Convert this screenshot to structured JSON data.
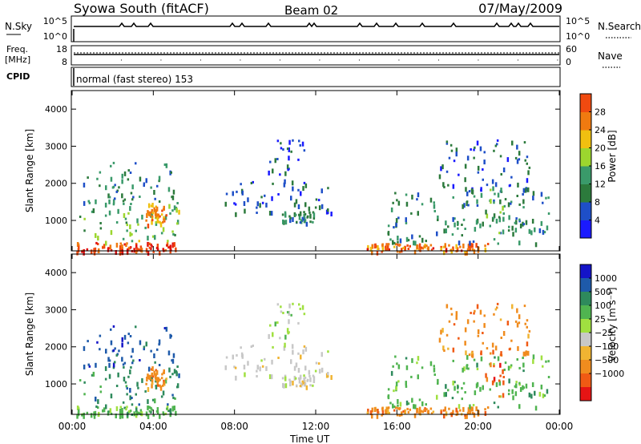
{
  "header": {
    "station": "Syowa South (fitACF)",
    "beam": "Beam 02",
    "date": "07/May/2009"
  },
  "panels": {
    "nsky": {
      "label": "N.Sky",
      "tick_top": "10^5",
      "tick_bottom": "10^0",
      "right_tick_top": "10^5",
      "right_tick_bottom": "10^0",
      "right_label": "N.Search"
    },
    "freq": {
      "label_line1": "Freq.",
      "label_line2": "[MHz]",
      "tick_top": "18",
      "tick_bottom": "8",
      "right_tick_top": "60",
      "right_tick_bottom": "0",
      "right_label": "Nave"
    },
    "cpid": {
      "label": "CPID",
      "text": "normal (fast stereo) 153"
    }
  },
  "colors": {
    "power": [
      "#1a1aff",
      "#1e4fc8",
      "#2c7a3c",
      "#3a9a6a",
      "#9cd62e",
      "#f0c010",
      "#f07a10",
      "#f04a10",
      "#e01010"
    ],
    "velocity": [
      "#e61414",
      "#f05a14",
      "#f08c1e",
      "#f0b432",
      "#c8c8c8",
      "#a0e040",
      "#50b450",
      "#2e8a5c",
      "#1e5aaa",
      "#1414c8"
    ]
  },
  "chart_data": [
    {
      "type": "heatmap",
      "name": "power",
      "xlabel": "",
      "ylabel": "Slant Range [km]",
      "xlim": [
        0,
        24
      ],
      "ylim": [
        180,
        4500
      ],
      "yticks": [
        "1000",
        "2000",
        "3000",
        "4000"
      ],
      "colorbar": {
        "label": "Power [dB]",
        "ticks": [
          "4",
          "8",
          "12",
          "16",
          "20",
          "24",
          "28"
        ],
        "range": [
          0,
          30
        ]
      },
      "regions": [
        {
          "t": [
            0.2,
            5.2
          ],
          "r": [
            180,
            420
          ],
          "v": 26
        },
        {
          "t": [
            0.3,
            5.3
          ],
          "r": [
            420,
            1500
          ],
          "v": 13
        },
        {
          "t": [
            0.5,
            5.0
          ],
          "r": [
            1500,
            2600
          ],
          "v": 9
        },
        {
          "t": [
            3.6,
            4.6
          ],
          "r": [
            900,
            1500
          ],
          "v": 21
        },
        {
          "t": [
            7.5,
            12.8
          ],
          "r": [
            1200,
            2100
          ],
          "v": 6
        },
        {
          "t": [
            10.3,
            12.0
          ],
          "r": [
            950,
            1250
          ],
          "v": 9
        },
        {
          "t": [
            9.5,
            11.5
          ],
          "r": [
            2100,
            3200
          ],
          "v": 5
        },
        {
          "t": [
            14.5,
            20.5
          ],
          "r": [
            180,
            400
          ],
          "v": 23
        },
        {
          "t": [
            15.5,
            23.5
          ],
          "r": [
            400,
            1800
          ],
          "v": 9
        },
        {
          "t": [
            18.0,
            22.5
          ],
          "r": [
            1800,
            3200
          ],
          "v": 6
        },
        {
          "t": [
            20.3,
            21.3
          ],
          "r": [
            500,
            2000
          ],
          "v": 11
        }
      ]
    },
    {
      "type": "heatmap",
      "name": "velocity",
      "xlabel": "Time UT",
      "ylabel": "Slant Range [km]",
      "xlim": [
        0,
        24
      ],
      "ylim": [
        180,
        4500
      ],
      "xticks": [
        "00:00",
        "04:00",
        "08:00",
        "12:00",
        "16:00",
        "20:00",
        "00:00"
      ],
      "yticks": [
        "1000",
        "2000",
        "3000",
        "4000"
      ],
      "colorbar": {
        "label": "Velocity [m s⁻¹]",
        "ticks": [
          "1000",
          "500",
          "100",
          "25",
          "−25",
          "−100",
          "−500",
          "−1000"
        ]
      },
      "regions": [
        {
          "t": [
            0.2,
            5.2
          ],
          "r": [
            180,
            420
          ],
          "v": 6
        },
        {
          "t": [
            0.3,
            5.3
          ],
          "r": [
            420,
            1500
          ],
          "v": 7
        },
        {
          "t": [
            0.5,
            5.0
          ],
          "r": [
            1500,
            2600
          ],
          "v": 8
        },
        {
          "t": [
            3.6,
            4.6
          ],
          "r": [
            900,
            1500
          ],
          "v": 2
        },
        {
          "t": [
            7.5,
            12.8
          ],
          "r": [
            1200,
            2100
          ],
          "v": 4
        },
        {
          "t": [
            10.3,
            12.0
          ],
          "r": [
            950,
            1250
          ],
          "v": 4
        },
        {
          "t": [
            9.5,
            11.5
          ],
          "r": [
            2100,
            3200
          ],
          "v": 5
        },
        {
          "t": [
            14.5,
            20.5
          ],
          "r": [
            180,
            400
          ],
          "v": 2
        },
        {
          "t": [
            15.5,
            23.5
          ],
          "r": [
            400,
            1800
          ],
          "v": 6
        },
        {
          "t": [
            18.0,
            22.5
          ],
          "r": [
            1800,
            3200
          ],
          "v": 2
        },
        {
          "t": [
            20.3,
            21.3
          ],
          "r": [
            500,
            2000
          ],
          "v": 1
        }
      ]
    }
  ]
}
